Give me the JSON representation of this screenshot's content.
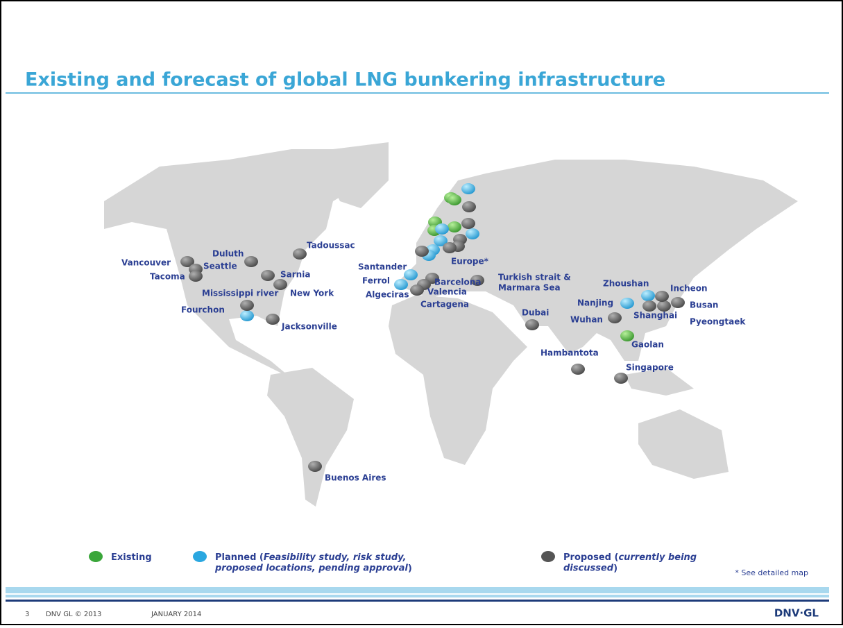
{
  "header": {
    "title": "Existing and forecast of global LNG bunkering infrastructure"
  },
  "locations": [
    "Vancouver",
    "Seattle",
    "Tacoma",
    "Duluth",
    "Tadoussac",
    "Sarnia",
    "Mississippi river",
    "New York",
    "Fourchon",
    "Jacksonville",
    "Santander",
    "Ferrol",
    "Algeciras",
    "Barcelona",
    "Valencia",
    "Cartagena",
    "Europe*",
    "Turkish strait &",
    "Marmara Sea",
    "Dubai",
    "Hambantota",
    "Zhoushan",
    "Nanjing",
    "Incheon",
    "Busan",
    "Shanghai",
    "Wuhan",
    "Pyeongtaek",
    "Gaolan",
    "Singapore",
    "Buenos Aires"
  ],
  "legend": {
    "items": [
      {
        "label": "Existing",
        "color": "#3aa63a"
      },
      {
        "label": "Planned (",
        "detail": "Feasibility study, risk study, proposed locations, pending approval",
        "close": ")",
        "color": "#2aa7e0"
      },
      {
        "label": "Proposed (",
        "detail": "currently being discussed",
        "close": ")",
        "color": "#555555"
      }
    ]
  },
  "note": "* See detailed map",
  "footer": {
    "page": "3",
    "copyright": "DNV GL © 2013",
    "date": "JANUARY 2014",
    "logo": "DNV·GL"
  }
}
